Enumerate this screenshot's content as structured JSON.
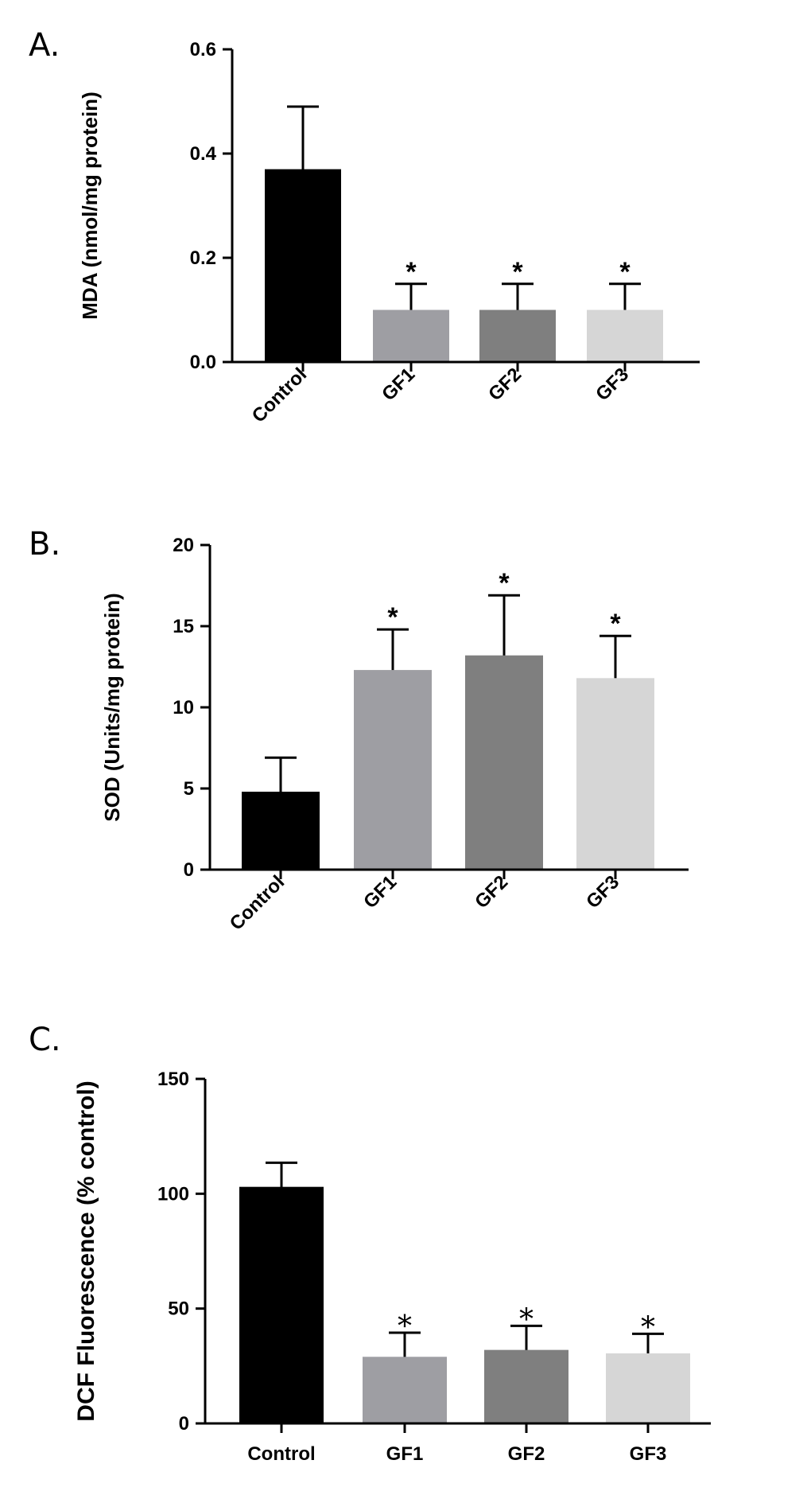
{
  "chart_data": [
    {
      "panel": "A.",
      "type": "bar",
      "title": "",
      "xlabel": "",
      "ylabel": "MDA (nmol/mg protein)",
      "categories": [
        "Control",
        "GF1",
        "GF2",
        "GF3"
      ],
      "values": [
        0.37,
        0.1,
        0.1,
        0.1
      ],
      "errors": [
        0.12,
        0.05,
        0.05,
        0.05
      ],
      "ylim": [
        0,
        0.6
      ],
      "yticks": [
        0,
        0.2,
        0.4,
        0.6
      ],
      "ytick_labels": [
        "0.0",
        "0.2",
        "0.4",
        "0.6"
      ],
      "significance": [
        "",
        "*",
        "*",
        "*"
      ],
      "colors": [
        "#000000",
        "#9e9ea3",
        "#7f7f7f",
        "#d6d6d6"
      ]
    },
    {
      "panel": "B.",
      "type": "bar",
      "title": "",
      "xlabel": "",
      "ylabel": "SOD (Units/mg protein)",
      "categories": [
        "Control",
        "GF1",
        "GF2",
        "GF3"
      ],
      "values": [
        4.8,
        12.3,
        13.2,
        11.8
      ],
      "errors": [
        2.1,
        2.5,
        3.7,
        2.6
      ],
      "ylim": [
        0,
        20
      ],
      "yticks": [
        0,
        5,
        10,
        15,
        20
      ],
      "ytick_labels": [
        "0",
        "5",
        "10",
        "15",
        "20"
      ],
      "significance": [
        "",
        "*",
        "*",
        "*"
      ],
      "colors": [
        "#000000",
        "#9e9ea3",
        "#7f7f7f",
        "#d6d6d6"
      ]
    },
    {
      "panel": "C.",
      "type": "bar",
      "title": "",
      "xlabel": "",
      "ylabel": "DCF Fluorescence (% control)",
      "categories": [
        "Control",
        "GF1",
        "GF2",
        "GF3"
      ],
      "values": [
        103,
        29,
        32,
        30.5
      ],
      "errors": [
        10.5,
        10.5,
        10.5,
        8.5
      ],
      "ylim": [
        0,
        150
      ],
      "yticks": [
        0,
        50,
        100,
        150
      ],
      "ytick_labels": [
        "0",
        "50",
        "100",
        "150"
      ],
      "significance": [
        "",
        "*",
        "*",
        "*"
      ],
      "colors": [
        "#000000",
        "#9e9ea3",
        "#7f7f7f",
        "#d6d6d6"
      ]
    }
  ]
}
